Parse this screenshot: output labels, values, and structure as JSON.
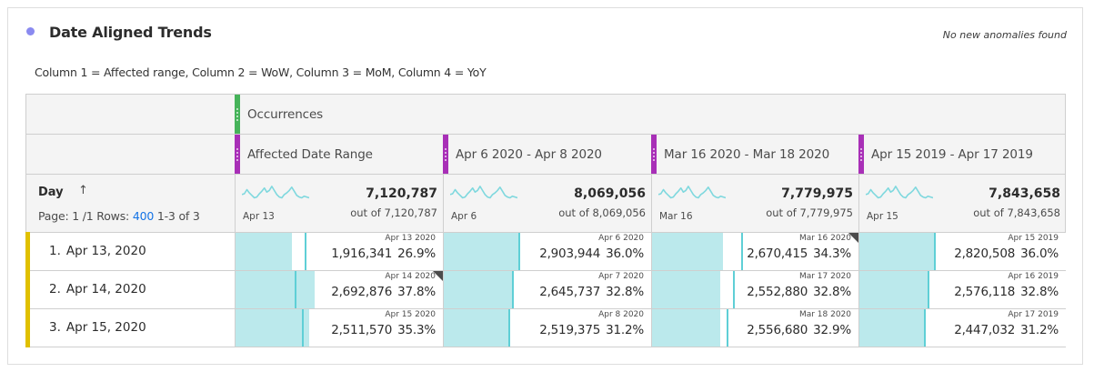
{
  "panel": {
    "title": "Date Aligned Trends",
    "anomaly_status": "No new anomalies found",
    "description": "Column 1 = Affected range, Column 2 = WoW, Column 3 = MoM, Column 4 = YoY",
    "title_dot_color": "#8a8af0"
  },
  "table": {
    "metric_header": {
      "label": "Occurrences",
      "color": "#46b35a"
    },
    "columns": [
      {
        "label": "Affected Date Range",
        "color": "#a82fb7",
        "spark_label": "Apr 13",
        "total": "7,120,787",
        "out_of": "out of 7,120,787"
      },
      {
        "label": "Apr 6 2020 - Apr 8 2020",
        "color": "#a82fb7",
        "spark_label": "Apr 6",
        "total": "8,069,056",
        "out_of": "out of 8,069,056"
      },
      {
        "label": "Mar 16 2020 - Mar 18 2020",
        "color": "#a82fb7",
        "spark_label": "Mar 16",
        "total": "7,779,975",
        "out_of": "out of 7,779,975"
      },
      {
        "label": "Apr 15 2019 - Apr 17 2019",
        "color": "#a82fb7",
        "spark_label": "Apr 15",
        "total": "7,843,658",
        "out_of": "out of 7,843,658"
      }
    ],
    "dimension": {
      "label": "Day",
      "sort_icon": "arrow-up-icon",
      "paging_prefix": "Page: 1 /1 Rows:",
      "rows_per_page": "400",
      "range": "1-3 of 3"
    },
    "rows": [
      {
        "num": "1.",
        "label": "Apr 13, 2020",
        "cells": [
          {
            "date": "Apr 13 2020",
            "value": "1,916,341",
            "pct": "26.9%",
            "fill": 0.269,
            "marker": 0.332,
            "anomaly": false
          },
          {
            "date": "Apr 6 2020",
            "value": "2,903,944",
            "pct": "36.0%",
            "fill": 0.36,
            "marker": 0.36,
            "anomaly": false
          },
          {
            "date": "Mar 16 2020",
            "value": "2,670,415",
            "pct": "34.3%",
            "fill": 0.343,
            "marker": 0.428,
            "anomaly": true
          },
          {
            "date": "Apr 15 2019",
            "value": "2,820,508",
            "pct": "36.0%",
            "fill": 0.36,
            "marker": 0.36,
            "anomaly": false
          }
        ]
      },
      {
        "num": "2.",
        "label": "Apr 14, 2020",
        "cells": [
          {
            "date": "Apr 14 2020",
            "value": "2,692,876",
            "pct": "37.8%",
            "fill": 0.378,
            "marker": 0.284,
            "anomaly": true
          },
          {
            "date": "Apr 7 2020",
            "value": "2,645,737",
            "pct": "32.8%",
            "fill": 0.328,
            "marker": 0.328,
            "anomaly": false
          },
          {
            "date": "Mar 17 2020",
            "value": "2,552,880",
            "pct": "32.8%",
            "fill": 0.328,
            "marker": 0.389,
            "anomaly": false
          },
          {
            "date": "Apr 16 2019",
            "value": "2,576,118",
            "pct": "32.8%",
            "fill": 0.328,
            "marker": 0.328,
            "anomaly": false
          }
        ]
      },
      {
        "num": "3.",
        "label": "Apr 15, 2020",
        "cells": [
          {
            "date": "Apr 15 2020",
            "value": "2,511,570",
            "pct": "35.3%",
            "fill": 0.353,
            "marker": 0.319,
            "anomaly": false
          },
          {
            "date": "Apr 8 2020",
            "value": "2,519,375",
            "pct": "31.2%",
            "fill": 0.312,
            "marker": 0.312,
            "anomaly": false
          },
          {
            "date": "Mar 18 2020",
            "value": "2,556,680",
            "pct": "32.9%",
            "fill": 0.329,
            "marker": 0.358,
            "anomaly": false
          },
          {
            "date": "Apr 17 2019",
            "value": "2,447,032",
            "pct": "31.2%",
            "fill": 0.312,
            "marker": 0.312,
            "anomaly": false
          }
        ]
      }
    ],
    "colors": {
      "bar_fill": "#bbe9ec",
      "bar_marker": "#5fcfd6",
      "sparkline": "#7fd8de",
      "row_accent": "#e0c000",
      "link": "#1473e6"
    }
  }
}
